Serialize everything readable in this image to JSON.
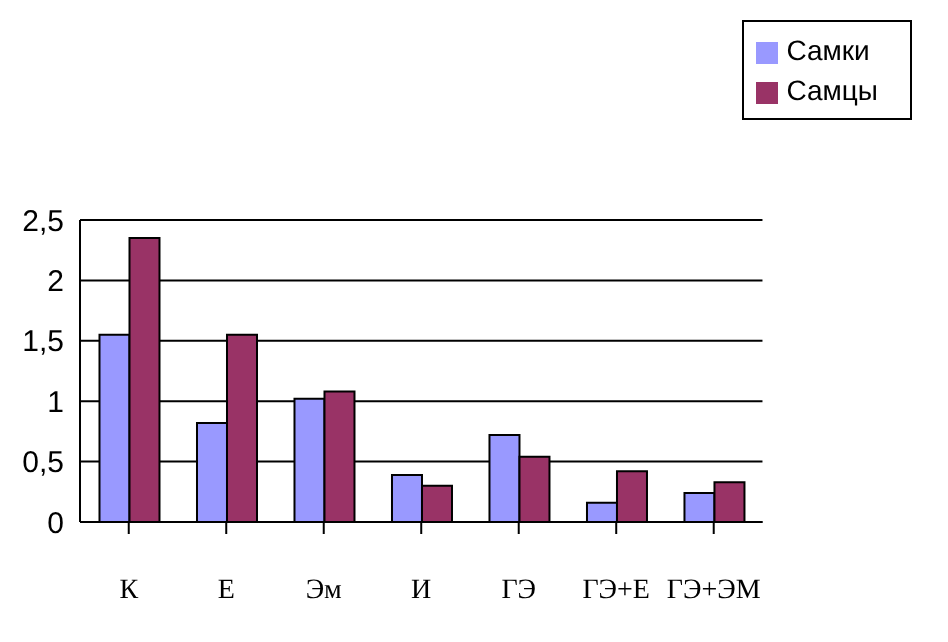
{
  "chart_data": {
    "type": "bar",
    "categories": [
      "К",
      "Е",
      "Эм",
      "И",
      "ГЭ",
      "ГЭ+Е",
      "ГЭ+ЭМ"
    ],
    "series": [
      {
        "name": "Самки",
        "color": "#9999ff",
        "values": [
          1.55,
          0.82,
          1.02,
          0.39,
          0.72,
          0.16,
          0.24
        ]
      },
      {
        "name": "Самцы",
        "color": "#993366",
        "values": [
          2.35,
          1.55,
          1.08,
          0.3,
          0.54,
          0.42,
          0.33
        ]
      }
    ],
    "ylim": [
      0,
      2.5
    ],
    "yticks": [
      0,
      {
        "value": 0.5,
        "label": "0,5"
      },
      1,
      {
        "value": 1.5,
        "label": "1,5"
      },
      2,
      {
        "value": 2.5,
        "label": "2,5"
      }
    ],
    "grid": "y",
    "legend": "top right"
  }
}
